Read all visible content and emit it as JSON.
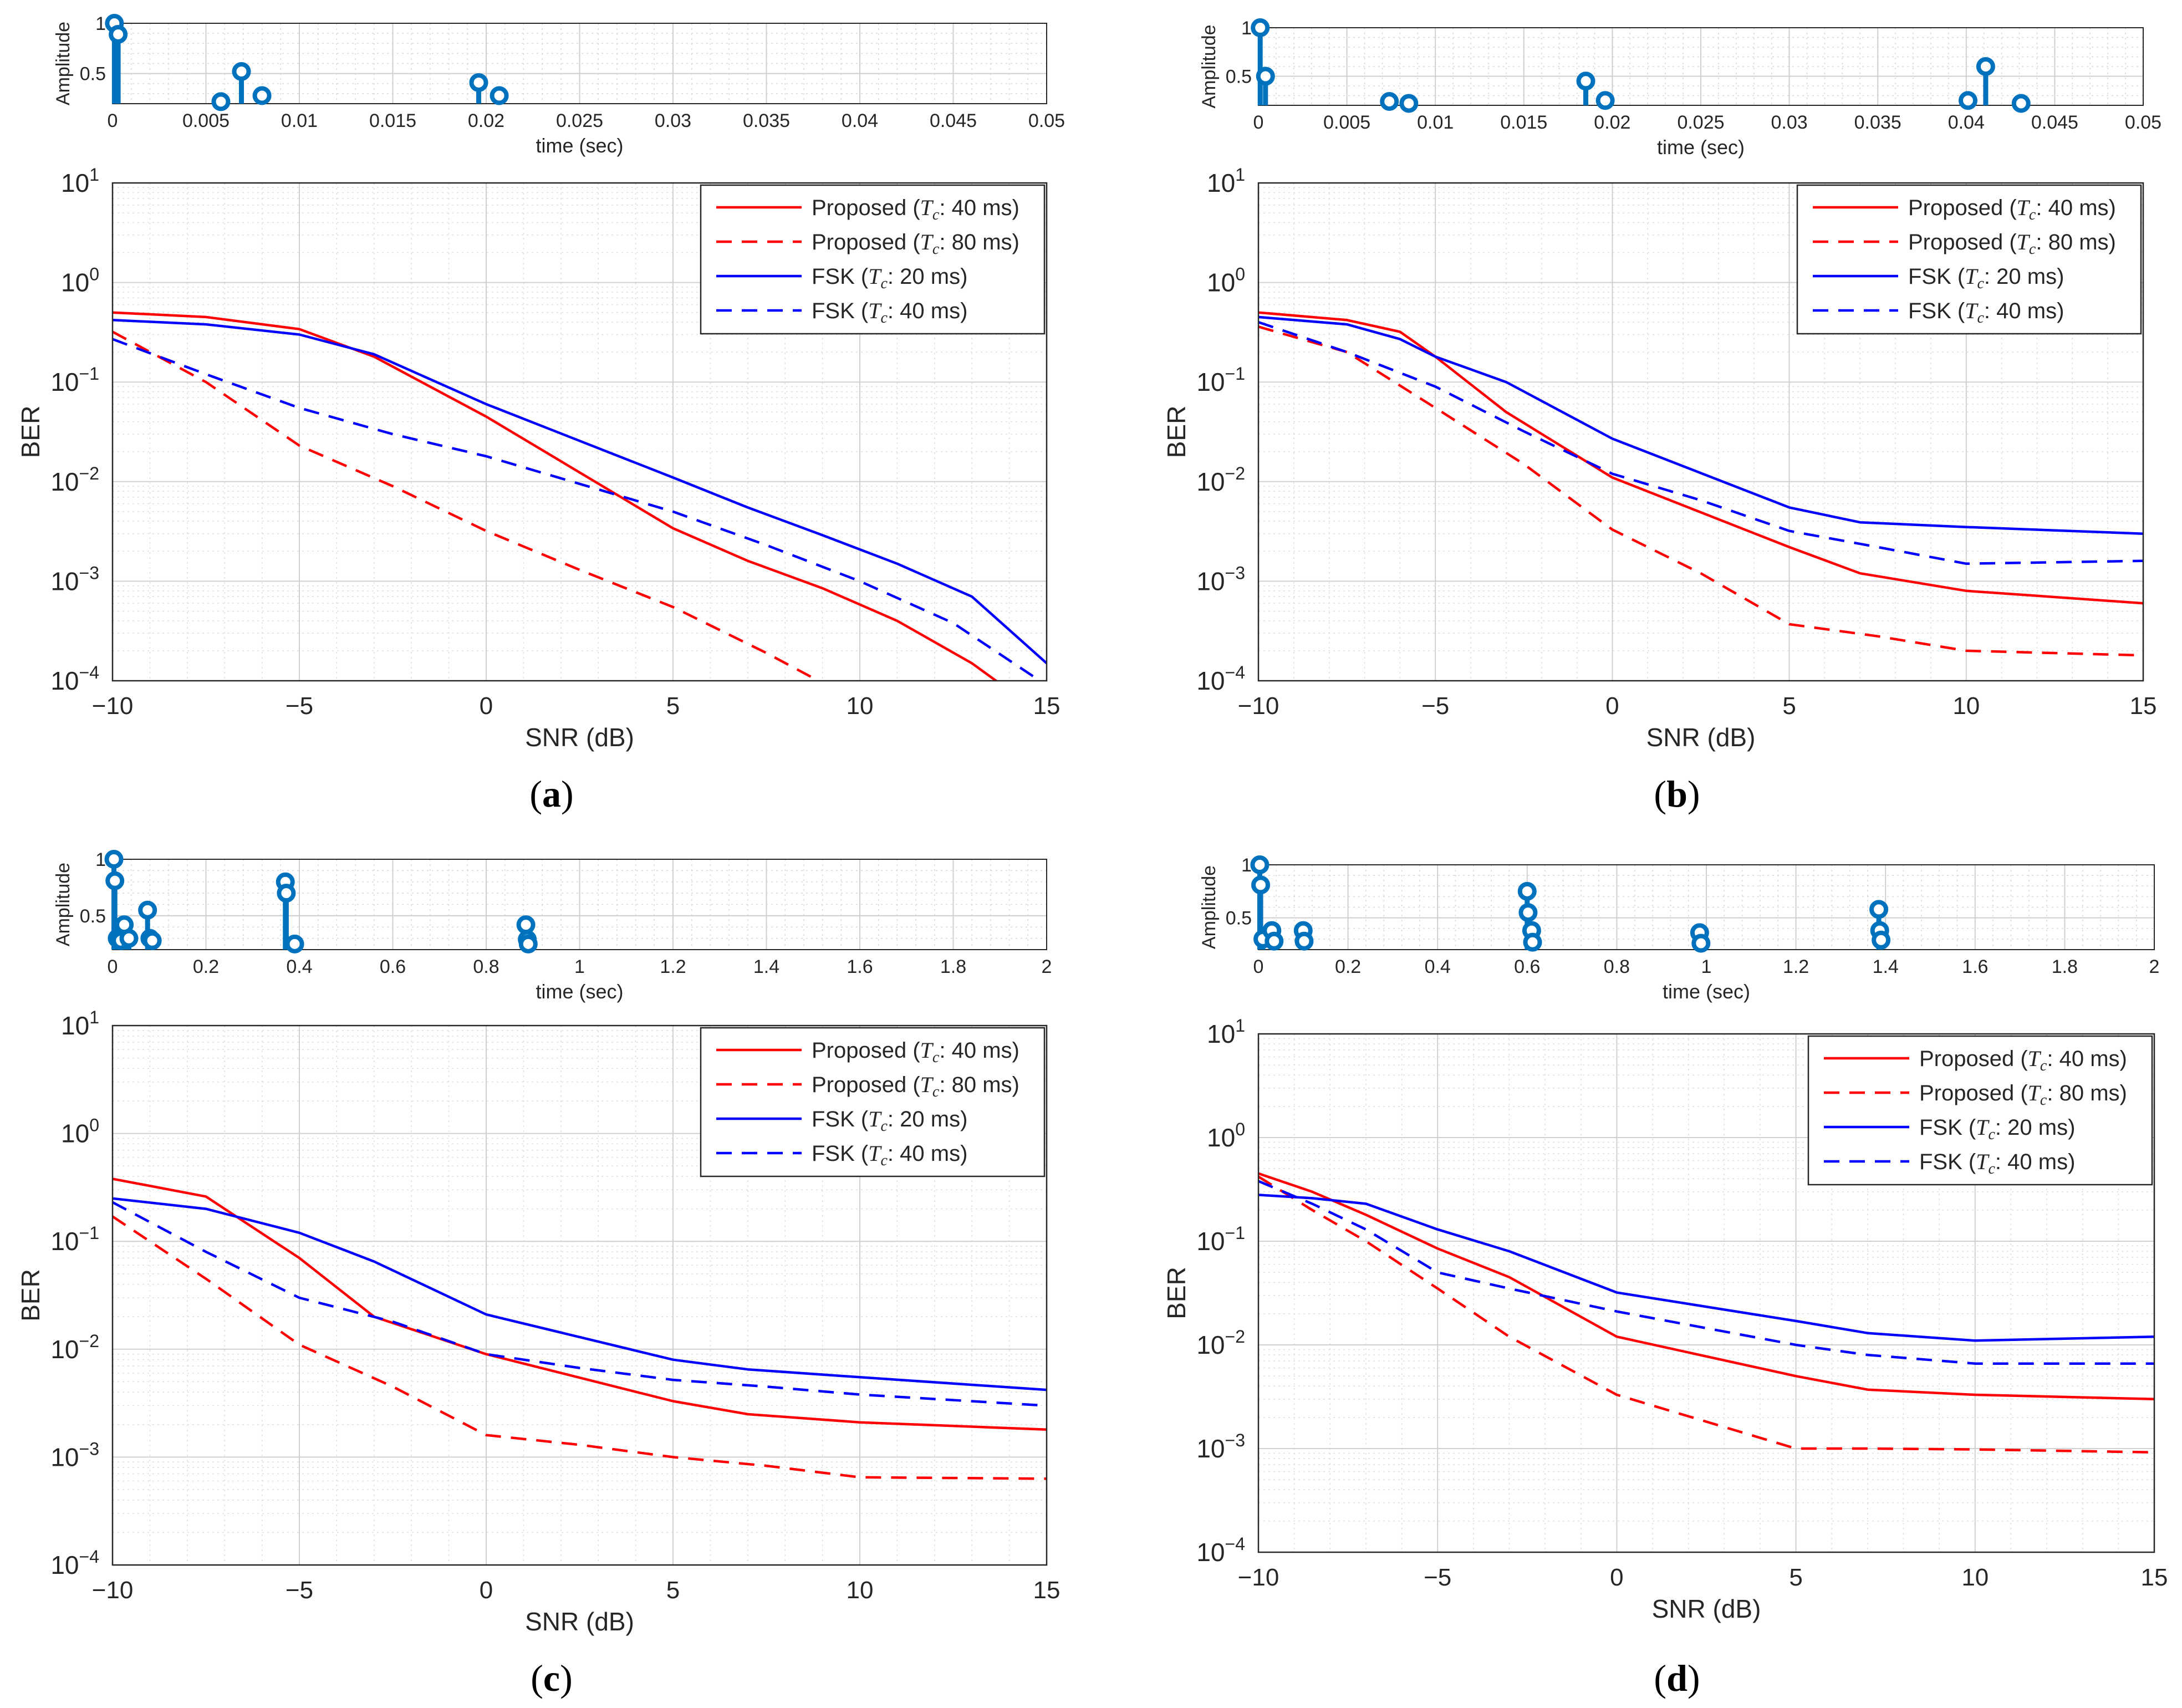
{
  "chart_data": [
    {
      "id": "a",
      "caption": "(a)",
      "impulse": {
        "type": "stem",
        "ylabel": "Amplitude",
        "xlabel": "time (sec)",
        "xlim": [
          0,
          0.05
        ],
        "ylim": [
          0.2,
          1
        ],
        "xticks": [
          "0",
          "0.005",
          "0.01",
          "0.015",
          "0.02",
          "0.025",
          "0.03",
          "0.035",
          "0.04",
          "0.045",
          "0.05"
        ],
        "yticks": [
          "0.5",
          "1"
        ],
        "color": "#0072BD",
        "taps": [
          {
            "x": 0.0001,
            "y": 1.0
          },
          {
            "x": 0.0003,
            "y": 0.89
          },
          {
            "x": 0.0058,
            "y": 0.22
          },
          {
            "x": 0.0069,
            "y": 0.52
          },
          {
            "x": 0.008,
            "y": 0.28
          },
          {
            "x": 0.0196,
            "y": 0.41
          },
          {
            "x": 0.0207,
            "y": 0.28
          }
        ]
      },
      "ber": {
        "type": "line",
        "ylabel": "BER",
        "xlabel": "SNR (dB)",
        "xlim": [
          -10,
          15
        ],
        "ylim": [
          0.0001,
          10
        ],
        "yscale": "log",
        "grid": true,
        "legend_position": "top-right",
        "xticks": [
          "−10",
          "−5",
          "0",
          "5",
          "10",
          "15"
        ],
        "series": [
          {
            "name": "Proposed",
            "tc": "40 ms",
            "color": "#ff0000",
            "dash": false,
            "x": [
              -10,
              -7.5,
              -5,
              -3,
              0,
              5,
              7,
              9,
              11,
              13,
              14
            ],
            "y": [
              0.5,
              0.45,
              0.34,
              0.18,
              0.045,
              0.0034,
              0.0016,
              0.00085,
              0.0004,
              0.00015,
              8e-05
            ]
          },
          {
            "name": "Proposed",
            "tc": "80 ms",
            "color": "#ff0000",
            "dash": true,
            "x": [
              -10,
              -7.5,
              -5,
              -2.5,
              0,
              2.5,
              5,
              7.5,
              9,
              10
            ],
            "y": [
              0.32,
              0.1,
              0.023,
              0.009,
              0.0032,
              0.0013,
              0.00055,
              0.00019,
              9.5e-05,
              5e-05
            ]
          },
          {
            "name": "FSK",
            "tc": "20 ms",
            "color": "#0000ff",
            "dash": false,
            "x": [
              -10,
              -7.5,
              -5,
              -3,
              0,
              5,
              7,
              9,
              11,
              13,
              15
            ],
            "y": [
              0.42,
              0.38,
              0.3,
              0.19,
              0.06,
              0.011,
              0.0055,
              0.0029,
              0.0015,
              0.0007,
              0.00015
            ]
          },
          {
            "name": "FSK",
            "tc": "40 ms",
            "color": "#0000ff",
            "dash": true,
            "x": [
              -10,
              -7.5,
              -5,
              -2.5,
              0,
              2.5,
              5,
              7.5,
              10,
              12.5,
              15
            ],
            "y": [
              0.27,
              0.12,
              0.055,
              0.03,
              0.018,
              0.0095,
              0.005,
              0.0023,
              0.001,
              0.00038,
              9e-05
            ]
          }
        ]
      }
    },
    {
      "id": "b",
      "caption": "(b)",
      "impulse": {
        "type": "stem",
        "ylabel": "Amplitude",
        "xlabel": "time (sec)",
        "xlim": [
          0,
          0.05
        ],
        "ylim": [
          0.2,
          1
        ],
        "xticks": [
          "0",
          "0.005",
          "0.01",
          "0.015",
          "0.02",
          "0.025",
          "0.03",
          "0.035",
          "0.04",
          "0.045",
          "0.05"
        ],
        "yticks": [
          "0.5",
          "1"
        ],
        "color": "#0072BD",
        "taps": [
          {
            "x": 0.0001,
            "y": 1.0
          },
          {
            "x": 0.0004,
            "y": 0.5
          },
          {
            "x": 0.0074,
            "y": 0.24
          },
          {
            "x": 0.0085,
            "y": 0.22
          },
          {
            "x": 0.0185,
            "y": 0.45
          },
          {
            "x": 0.0196,
            "y": 0.25
          },
          {
            "x": 0.0401,
            "y": 0.25
          },
          {
            "x": 0.0411,
            "y": 0.6
          },
          {
            "x": 0.0431,
            "y": 0.22
          }
        ]
      },
      "ber": {
        "type": "line",
        "ylabel": "BER",
        "xlabel": "SNR (dB)",
        "xlim": [
          -10,
          15
        ],
        "ylim": [
          0.0001,
          10
        ],
        "yscale": "log",
        "grid": true,
        "legend_position": "top-right",
        "xticks": [
          "−10",
          "−5",
          "0",
          "5",
          "10",
          "15"
        ],
        "series": [
          {
            "name": "Proposed",
            "tc": "40 ms",
            "color": "#ff0000",
            "dash": false,
            "x": [
              -10,
              -7.5,
              -6,
              -5,
              -3,
              0,
              5,
              7,
              10,
              15
            ],
            "y": [
              0.5,
              0.42,
              0.32,
              0.18,
              0.05,
              0.011,
              0.0022,
              0.0012,
              0.0008,
              0.0006
            ]
          },
          {
            "name": "Proposed",
            "tc": "80 ms",
            "color": "#ff0000",
            "dash": true,
            "x": [
              -10,
              -7.5,
              -5,
              -2.5,
              0,
              2.5,
              5,
              7.5,
              10,
              15
            ],
            "y": [
              0.36,
              0.2,
              0.055,
              0.015,
              0.0033,
              0.0012,
              0.00037,
              0.00028,
              0.0002,
              0.00018
            ]
          },
          {
            "name": "FSK",
            "tc": "20 ms",
            "color": "#0000ff",
            "dash": false,
            "x": [
              -10,
              -7.5,
              -6,
              -5,
              -3,
              0,
              5,
              7,
              10,
              15
            ],
            "y": [
              0.45,
              0.38,
              0.27,
              0.18,
              0.1,
              0.027,
              0.0055,
              0.0039,
              0.0035,
              0.003
            ]
          },
          {
            "name": "FSK",
            "tc": "40 ms",
            "color": "#0000ff",
            "dash": true,
            "x": [
              -10,
              -7.5,
              -5,
              -2.5,
              0,
              2.5,
              5,
              7.5,
              10,
              15
            ],
            "y": [
              0.4,
              0.2,
              0.09,
              0.032,
              0.012,
              0.0065,
              0.0032,
              0.0022,
              0.0015,
              0.0016
            ]
          }
        ]
      }
    },
    {
      "id": "c",
      "caption": "(c)",
      "impulse": {
        "type": "stem",
        "ylabel": "Amplitude",
        "xlabel": "time (sec)",
        "xlim": [
          0,
          2
        ],
        "ylim": [
          0.2,
          1
        ],
        "xticks": [
          "0",
          "0.2",
          "0.4",
          "0.6",
          "0.8",
          "1",
          "1.2",
          "1.4",
          "1.6",
          "1.8",
          "2"
        ],
        "yticks": [
          "0.5",
          "1"
        ],
        "color": "#0072BD",
        "taps": [
          {
            "x": 0.003,
            "y": 1.0
          },
          {
            "x": 0.005,
            "y": 0.81
          },
          {
            "x": 0.01,
            "y": 0.3
          },
          {
            "x": 0.018,
            "y": 0.28
          },
          {
            "x": 0.025,
            "y": 0.42
          },
          {
            "x": 0.035,
            "y": 0.3
          },
          {
            "x": 0.075,
            "y": 0.55
          },
          {
            "x": 0.08,
            "y": 0.3
          },
          {
            "x": 0.085,
            "y": 0.28
          },
          {
            "x": 0.37,
            "y": 0.8
          },
          {
            "x": 0.372,
            "y": 0.7
          },
          {
            "x": 0.39,
            "y": 0.25
          },
          {
            "x": 0.885,
            "y": 0.42
          },
          {
            "x": 0.888,
            "y": 0.29
          },
          {
            "x": 0.89,
            "y": 0.25
          }
        ]
      },
      "ber": {
        "type": "line",
        "ylabel": "BER",
        "xlabel": "SNR (dB)",
        "xlim": [
          -10,
          15
        ],
        "ylim": [
          0.0001,
          10
        ],
        "yscale": "log",
        "grid": true,
        "legend_position": "top-right",
        "xticks": [
          "−10",
          "−5",
          "0",
          "5",
          "10",
          "15"
        ],
        "series": [
          {
            "name": "Proposed",
            "tc": "40 ms",
            "color": "#ff0000",
            "dash": false,
            "x": [
              -10,
              -7.5,
              -5,
              -3,
              0,
              5,
              7,
              10,
              15
            ],
            "y": [
              0.38,
              0.26,
              0.07,
              0.02,
              0.009,
              0.0033,
              0.0025,
              0.0021,
              0.0018
            ]
          },
          {
            "name": "Proposed",
            "tc": "80 ms",
            "color": "#ff0000",
            "dash": true,
            "x": [
              -10,
              -7.5,
              -5,
              -2.5,
              0,
              2.5,
              5,
              7.5,
              10,
              15
            ],
            "y": [
              0.17,
              0.045,
              0.011,
              0.0045,
              0.0016,
              0.0013,
              0.001,
              0.00083,
              0.00065,
              0.00063
            ]
          },
          {
            "name": "FSK",
            "tc": "20 ms",
            "color": "#0000ff",
            "dash": false,
            "x": [
              -10,
              -7.5,
              -5,
              -3,
              0,
              5,
              7,
              10,
              15
            ],
            "y": [
              0.25,
              0.2,
              0.12,
              0.065,
              0.021,
              0.008,
              0.0065,
              0.0055,
              0.0042
            ]
          },
          {
            "name": "FSK",
            "tc": "40 ms",
            "color": "#0000ff",
            "dash": true,
            "x": [
              -10,
              -7.5,
              -5,
              -2.5,
              0,
              2.5,
              5,
              7.5,
              10,
              15
            ],
            "y": [
              0.23,
              0.08,
              0.03,
              0.018,
              0.009,
              0.0067,
              0.0052,
              0.0045,
              0.0038,
              0.003
            ]
          }
        ]
      }
    },
    {
      "id": "d",
      "caption": "(d)",
      "impulse": {
        "type": "stem",
        "ylabel": "Amplitude",
        "xlabel": "time (sec)",
        "xlim": [
          0,
          2
        ],
        "ylim": [
          0.2,
          1
        ],
        "xticks": [
          "0",
          "0.2",
          "0.4",
          "0.6",
          "0.8",
          "1",
          "1.2",
          "1.4",
          "1.6",
          "1.8",
          "2"
        ],
        "yticks": [
          "0.5",
          "1"
        ],
        "color": "#0072BD",
        "taps": [
          {
            "x": 0.003,
            "y": 1.0
          },
          {
            "x": 0.005,
            "y": 0.81
          },
          {
            "x": 0.01,
            "y": 0.3
          },
          {
            "x": 0.03,
            "y": 0.38
          },
          {
            "x": 0.035,
            "y": 0.28
          },
          {
            "x": 0.1,
            "y": 0.38
          },
          {
            "x": 0.102,
            "y": 0.28
          },
          {
            "x": 0.6,
            "y": 0.75
          },
          {
            "x": 0.602,
            "y": 0.55
          },
          {
            "x": 0.61,
            "y": 0.38
          },
          {
            "x": 0.612,
            "y": 0.27
          },
          {
            "x": 0.985,
            "y": 0.36
          },
          {
            "x": 0.988,
            "y": 0.26
          },
          {
            "x": 1.385,
            "y": 0.58
          },
          {
            "x": 1.387,
            "y": 0.38
          },
          {
            "x": 1.39,
            "y": 0.29
          }
        ]
      },
      "ber": {
        "type": "line",
        "ylabel": "BER",
        "xlabel": "SNR (dB)",
        "xlim": [
          -10,
          15
        ],
        "ylim": [
          0.0001,
          10
        ],
        "yscale": "log",
        "grid": true,
        "legend_position": "top-right",
        "xticks": [
          "−10",
          "−5",
          "0",
          "5",
          "10",
          "15"
        ],
        "series": [
          {
            "name": "Proposed",
            "tc": "40 ms",
            "color": "#ff0000",
            "dash": false,
            "x": [
              -10,
              -8.5,
              -7,
              -5,
              -3,
              0,
              5,
              7,
              10,
              15
            ],
            "y": [
              0.45,
              0.3,
              0.18,
              0.085,
              0.045,
              0.012,
              0.005,
              0.0037,
              0.0033,
              0.003
            ]
          },
          {
            "name": "Proposed",
            "tc": "80 ms",
            "color": "#ff0000",
            "dash": true,
            "x": [
              -10,
              -8.5,
              -7,
              -5,
              -3,
              0,
              5,
              7,
              10,
              15
            ],
            "y": [
              0.42,
              0.2,
              0.1,
              0.035,
              0.012,
              0.0033,
              0.001,
              0.001,
              0.00098,
              0.00092
            ]
          },
          {
            "name": "FSK",
            "tc": "20 ms",
            "color": "#0000ff",
            "dash": false,
            "x": [
              -10,
              -8.5,
              -7,
              -5,
              -3,
              0,
              5,
              7,
              10,
              15
            ],
            "y": [
              0.28,
              0.26,
              0.23,
              0.13,
              0.08,
              0.032,
              0.017,
              0.013,
              0.011,
              0.012
            ]
          },
          {
            "name": "FSK",
            "tc": "40 ms",
            "color": "#0000ff",
            "dash": true,
            "x": [
              -10,
              -8.5,
              -7,
              -5,
              -3,
              0,
              5,
              7,
              10,
              15
            ],
            "y": [
              0.38,
              0.23,
              0.13,
              0.05,
              0.035,
              0.021,
              0.01,
              0.008,
              0.0066,
              0.0066
            ]
          }
        ]
      }
    }
  ]
}
